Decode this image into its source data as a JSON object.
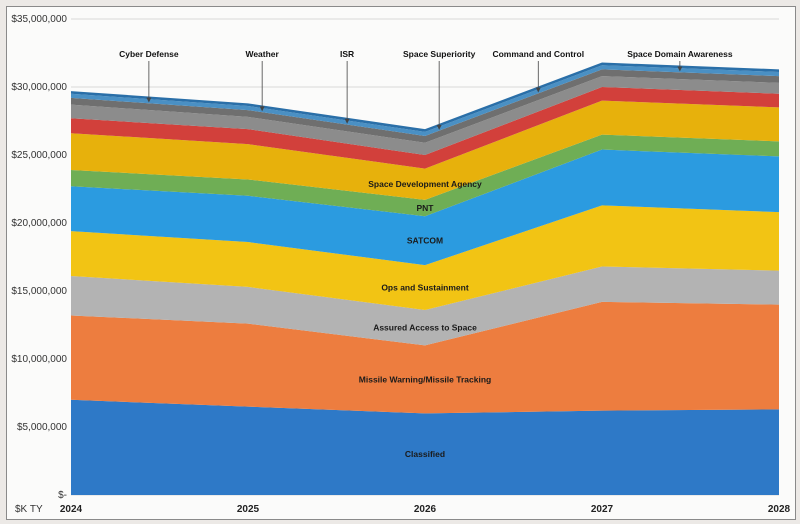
{
  "chart_data": {
    "type": "area",
    "stacked": true,
    "x": [
      "2024",
      "2025",
      "2026",
      "2027",
      "2028"
    ],
    "ylabel": "$K TY",
    "ylim": [
      0,
      35000000
    ],
    "yticks": [
      "$-",
      "$5,000,000",
      "$10,000,000",
      "$15,000,000",
      "$20,000,000",
      "$25,000,000",
      "$30,000,000",
      "$35,000,000"
    ],
    "series": [
      {
        "name": "Classified",
        "color": "#2e79c7",
        "values": [
          7000000,
          6500000,
          6000000,
          6200000,
          6300000
        ]
      },
      {
        "name": "Missile Warning/Missile Tracking",
        "color": "#ed7d3f",
        "values": [
          6200000,
          6100000,
          5000000,
          8000000,
          7700000
        ]
      },
      {
        "name": "Assured Access to Space",
        "color": "#b3b3b3",
        "values": [
          2900000,
          2700000,
          2600000,
          2600000,
          2500000
        ]
      },
      {
        "name": "Ops and Sustainment",
        "color": "#f2c414",
        "values": [
          3300000,
          3300000,
          3300000,
          4500000,
          4300000
        ]
      },
      {
        "name": "SATCOM",
        "color": "#2b9be0",
        "values": [
          3300000,
          3400000,
          3600000,
          4100000,
          4100000
        ]
      },
      {
        "name": "PNT",
        "color": "#6fae55",
        "values": [
          1200000,
          1200000,
          1200000,
          1100000,
          1100000
        ]
      },
      {
        "name": "Space Development Agency",
        "color": "#e7b10c",
        "values": [
          2700000,
          2600000,
          2300000,
          2500000,
          2500000
        ]
      },
      {
        "name": "Space Domain Awareness",
        "color": "#d2403b",
        "values": [
          1100000,
          1100000,
          1000000,
          1000000,
          1000000
        ]
      },
      {
        "name": "Command and Control",
        "color": "#8c8c8c",
        "values": [
          1000000,
          900000,
          900000,
          800000,
          800000
        ]
      },
      {
        "name": "ISR",
        "color": "#6f6f6f",
        "values": [
          500000,
          500000,
          500000,
          500000,
          500000
        ]
      },
      {
        "name": "Weather",
        "color": "#4a90c4",
        "values": [
          300000,
          300000,
          300000,
          300000,
          300000
        ]
      },
      {
        "name": "Cyber Defense",
        "color": "#2a6fa8",
        "values": [
          200000,
          200000,
          200000,
          200000,
          200000
        ]
      }
    ],
    "inline_labels": [
      "Classified",
      "Missile Warning/Missile Tracking",
      "Assured Access to Space",
      "Ops and Sustainment",
      "SATCOM",
      "PNT",
      "Space Development Agency"
    ],
    "annotations": [
      "Cyber Defense",
      "Weather",
      "ISR",
      "Space Superiority",
      "Command and Control",
      "Space Domain Awareness"
    ]
  }
}
